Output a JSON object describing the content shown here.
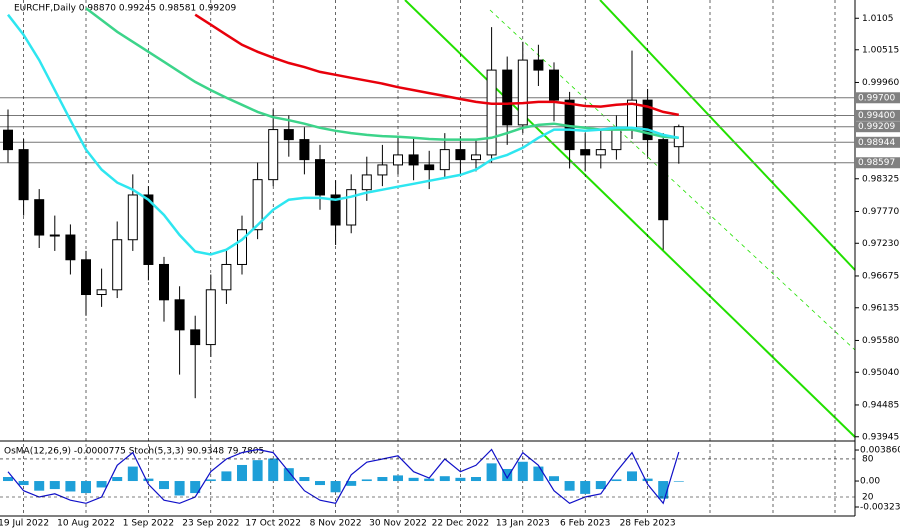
{
  "chart_data": {
    "type": "candlestick",
    "title": "EURCHF,Daily 0.98870 0.99245 0.98581 0.99209",
    "categories": [
      null,
      "19 Jul 2022",
      null,
      null,
      null,
      "10 Aug 2022",
      null,
      null,
      null,
      "1 Sep 2022",
      null,
      null,
      null,
      "23 Sep 2022",
      null,
      null,
      null,
      "17 Oct 2022",
      null,
      null,
      null,
      "8 Nov 2022",
      null,
      null,
      null,
      "30 Nov 2022",
      null,
      null,
      null,
      "22 Dec 2022",
      null,
      null,
      null,
      "13 Jan 2023",
      null,
      null,
      null,
      "6 Feb 2023",
      null,
      null,
      null,
      "28 Feb 2023",
      null,
      null
    ],
    "open": [
      0.9915,
      0.9882,
      0.9797,
      0.9737,
      0.9737,
      0.9695,
      0.9636,
      0.9644,
      0.9729,
      0.9805,
      0.9687,
      0.9627,
      0.9576,
      0.9551,
      0.9644,
      0.9687,
      0.9746,
      0.9831,
      0.9916,
      0.9899,
      0.9865,
      0.9805,
      0.9754,
      0.9814,
      0.9839,
      0.9856,
      0.9873,
      0.9856,
      0.9848,
      0.9882,
      0.9865,
      0.9873,
      1.0017,
      0.9924,
      1.0034,
      1.0017,
      0.9966,
      0.9882,
      0.9873,
      0.9882,
      0.9916,
      0.9966,
      0.9899,
      0.9887
    ],
    "high": [
      0.995,
      0.99,
      0.9815,
      0.977,
      0.9755,
      0.971,
      0.968,
      0.976,
      0.984,
      0.982,
      0.97,
      0.965,
      0.96,
      0.967,
      0.971,
      0.977,
      0.986,
      0.995,
      0.994,
      0.992,
      0.989,
      0.983,
      0.984,
      0.987,
      0.989,
      0.9905,
      0.99,
      0.988,
      0.991,
      0.9905,
      0.99,
      1.009,
      1.004,
      1.0065,
      1.006,
      1.003,
      0.998,
      0.991,
      0.9915,
      0.994,
      1.005,
      0.9985,
      0.991,
      0.99245
    ],
    "low": [
      0.986,
      0.977,
      0.9715,
      0.971,
      0.967,
      0.96,
      0.9615,
      0.963,
      0.971,
      0.966,
      0.959,
      0.95,
      0.946,
      0.953,
      0.962,
      0.967,
      0.973,
      0.982,
      0.987,
      0.984,
      0.978,
      0.972,
      0.974,
      0.9795,
      0.982,
      0.984,
      0.983,
      0.9815,
      0.9835,
      0.984,
      0.9845,
      0.986,
      0.989,
      0.991,
      0.999,
      0.993,
      0.985,
      0.9845,
      0.985,
      0.9865,
      0.99,
      0.987,
      0.9712,
      0.98581
    ],
    "close": [
      0.9882,
      0.9797,
      0.9737,
      0.9737,
      0.9695,
      0.9636,
      0.9644,
      0.9729,
      0.9805,
      0.9687,
      0.9627,
      0.9576,
      0.9551,
      0.9644,
      0.9687,
      0.9746,
      0.9831,
      0.9916,
      0.9899,
      0.9865,
      0.9805,
      0.9754,
      0.9814,
      0.9839,
      0.9856,
      0.9873,
      0.9856,
      0.9848,
      0.9882,
      0.9865,
      0.9873,
      1.0017,
      0.9924,
      1.0034,
      1.0017,
      0.9966,
      0.9882,
      0.9873,
      0.9882,
      0.9916,
      0.9966,
      0.9899,
      0.9763,
      0.99209
    ],
    "up_color": "#ffffff",
    "down_color": "#000000",
    "series": [
      {
        "color": "#e8000b",
        "values": [
          null,
          null,
          null,
          null,
          null,
          null,
          null,
          null,
          null,
          null,
          null,
          null,
          1.0111,
          1.0094,
          1.0077,
          1.006,
          1.0048,
          1.0038,
          1.0029,
          1.0022,
          1.0014,
          1.0009,
          1.0004,
          0.9999,
          0.9994,
          0.9988,
          0.9983,
          0.9978,
          0.9973,
          0.9968,
          0.9963,
          0.996,
          0.996,
          0.9961,
          0.9963,
          0.9963,
          0.996,
          0.9956,
          0.9955,
          0.9958,
          0.996,
          0.9955,
          0.9946,
          0.9941
        ]
      },
      {
        "color": "#3cd48a",
        "values": [
          null,
          null,
          null,
          null,
          null,
          1.0122,
          1.0102,
          1.0082,
          1.0065,
          1.0048,
          1.0031,
          1.0014,
          0.9997,
          0.9983,
          0.997,
          0.9958,
          0.9946,
          0.9937,
          0.9932,
          0.9926,
          0.9919,
          0.9914,
          0.991,
          0.9907,
          0.9905,
          0.9904,
          0.9902,
          0.99,
          0.9899,
          0.9899,
          0.9899,
          0.9902,
          0.991,
          0.9919,
          0.9924,
          0.9926,
          0.9922,
          0.9919,
          0.9916,
          0.9916,
          0.9916,
          0.991,
          0.9904,
          0.9902
        ]
      },
      {
        "color": "#2ee6f0",
        "values": [
          1.0111,
          1.0077,
          1.0034,
          0.9983,
          0.9932,
          0.9882,
          0.9848,
          0.9826,
          0.9814,
          0.9797,
          0.9771,
          0.9737,
          0.9709,
          0.9704,
          0.9712,
          0.9729,
          0.9754,
          0.978,
          0.9797,
          0.98,
          0.98,
          0.9797,
          0.9802,
          0.9809,
          0.9814,
          0.9819,
          0.9824,
          0.9829,
          0.9834,
          0.9839,
          0.9848,
          0.9865,
          0.9873,
          0.9885,
          0.9902,
          0.9916,
          0.9916,
          0.9914,
          0.9916,
          0.9919,
          0.9919,
          0.9916,
          0.9907,
          0.9902
        ]
      }
    ],
    "ylim": [
      0.9389,
      1.0136
    ],
    "yticks": [
      1.0105,
      1.00515,
      {
        "value": 0.9996,
        "label": "0.99960"
      },
      0.98325,
      {
        "value": 0.9777,
        "label": "0.97770"
      },
      {
        "value": 0.9723,
        "label": "0.97230"
      },
      0.96675,
      0.96135,
      {
        "value": 0.9558,
        "label": "0.95580"
      },
      {
        "value": 0.9504,
        "label": "0.95040"
      },
      0.94485,
      0.93945
    ],
    "levels": [
      {
        "value": 0.997,
        "label": "0.99700"
      },
      {
        "value": 0.994,
        "label": "0.99400"
      },
      0.99209,
      0.98944,
      0.98597
    ],
    "oscillator": {
      "title": "OsMA(12,26,9) -0.0000775 Stoch(5,3,3) 90.9348 79.7805",
      "osma_color": "#1e9fd8",
      "osma": [
        0.0005,
        -0.0005,
        -0.0012,
        -0.001,
        -0.0013,
        -0.0015,
        -0.0008,
        0.0005,
        0.0018,
        0.0003,
        -0.001,
        -0.0018,
        -0.0015,
        0.0002,
        0.0012,
        0.002,
        0.0026,
        0.0028,
        0.0016,
        0.0005,
        -0.0005,
        -0.0014,
        -0.0006,
        0.0002,
        0.0005,
        0.0007,
        0.0004,
        0.0003,
        0.0006,
        0.0004,
        0.0005,
        0.0022,
        0.0015,
        0.0024,
        0.0018,
        0.0006,
        -0.0012,
        -0.0016,
        -0.001,
        0.0002,
        0.0012,
        0.0003,
        -0.0022,
        -7.75e-05
      ],
      "stoch_color": "#1010c8",
      "stoch": [
        60,
        30,
        20,
        25,
        15,
        10,
        20,
        70,
        90,
        40,
        15,
        10,
        20,
        60,
        80,
        90,
        95,
        90,
        60,
        30,
        15,
        10,
        55,
        75,
        80,
        85,
        60,
        50,
        80,
        60,
        70,
        95,
        50,
        90,
        70,
        30,
        10,
        20,
        25,
        60,
        90,
        40,
        10,
        90.9348
      ],
      "ylim": [
        -0.00423,
        0.00486
      ],
      "yticks": [
        0.0038605,
        {
          "value": 0,
          "label": "0.00"
        },
        -0.003235
      ],
      "y2lim": [
        -8.4,
        106.8
      ],
      "y2ticks": [
        80,
        20
      ]
    }
  }
}
